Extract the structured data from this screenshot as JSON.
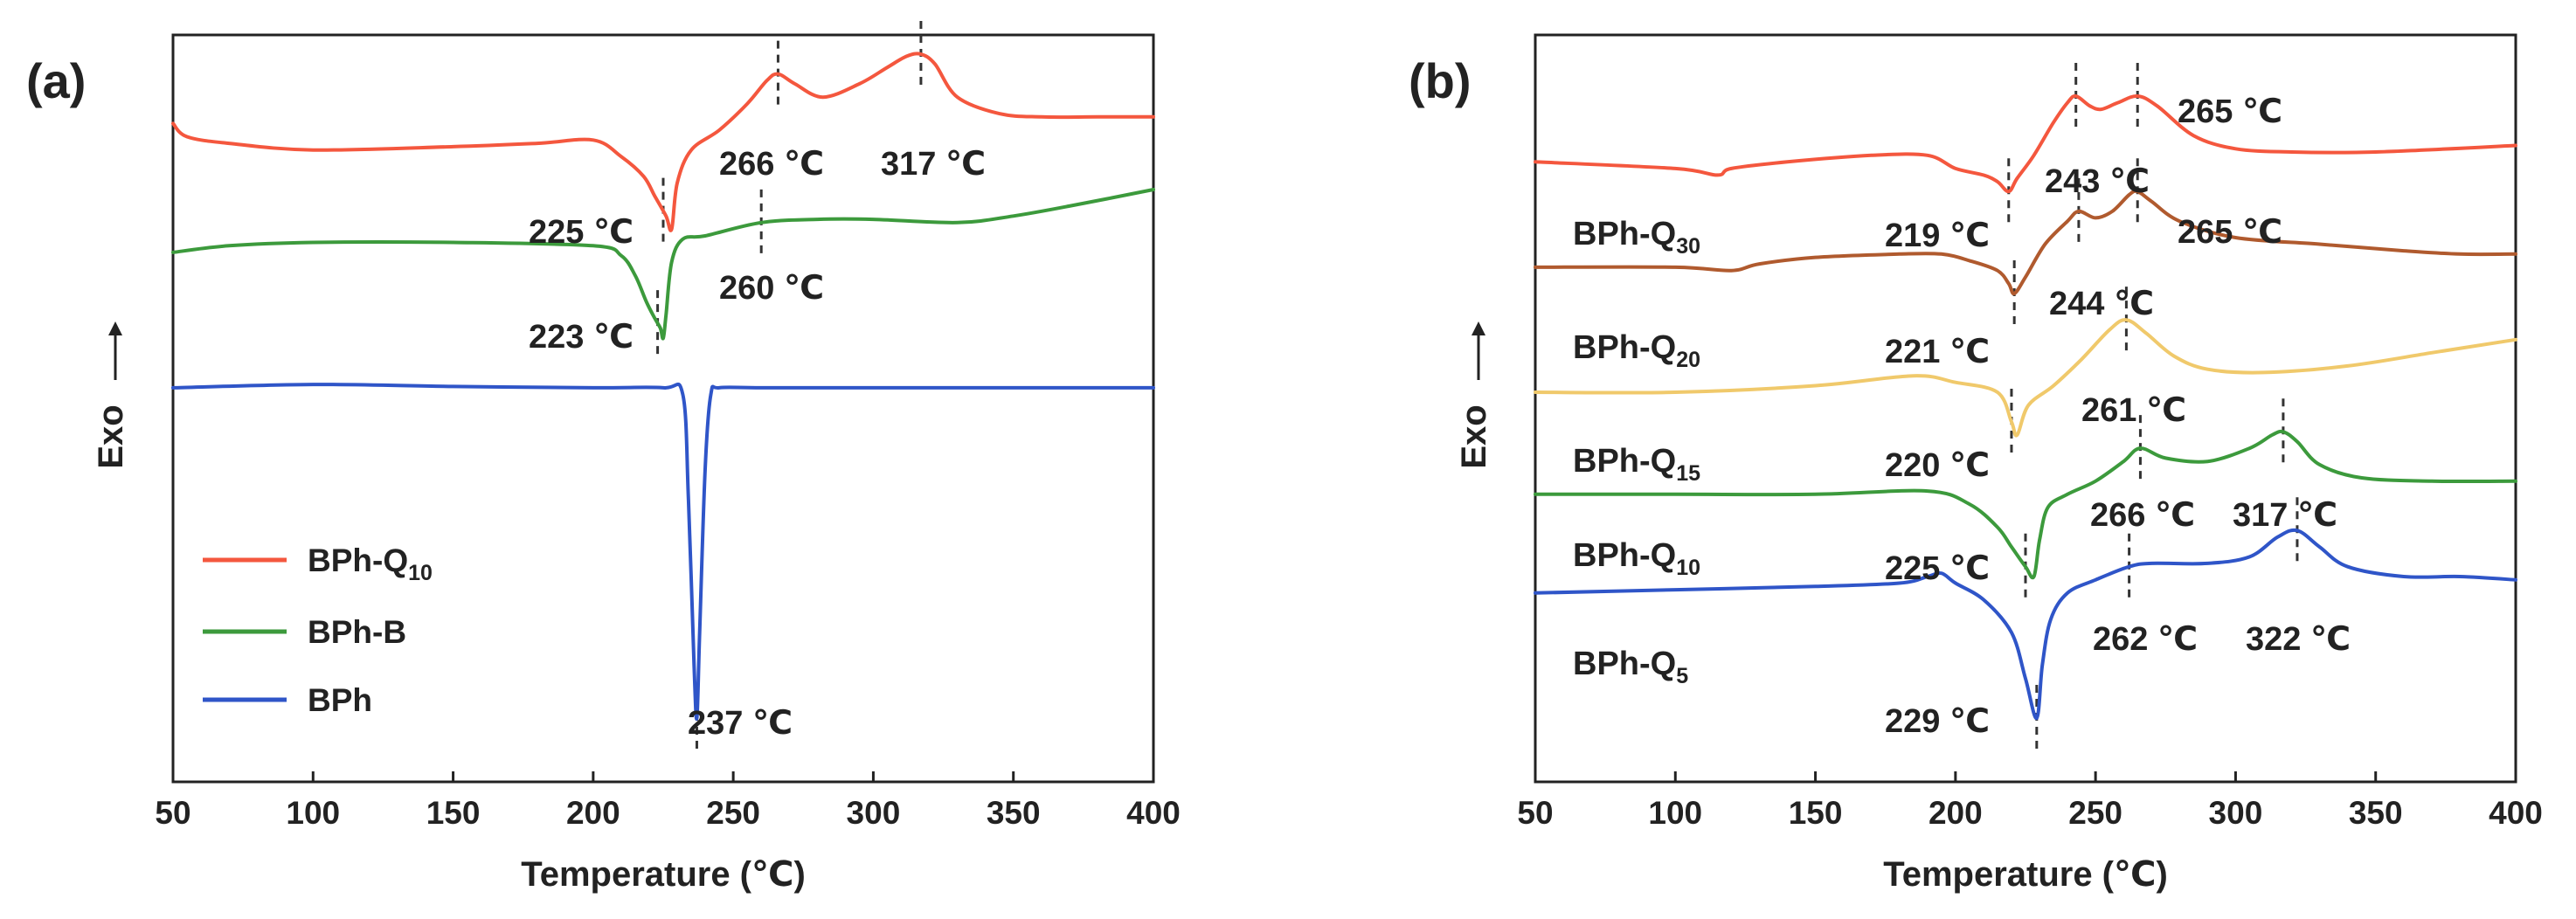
{
  "chart_data": [
    {
      "panel": "(a)",
      "type": "line",
      "xlabel": "Temperature (℃)",
      "ylabel": "Exo",
      "xlim": [
        50,
        400
      ],
      "xticks": [
        "50",
        "100",
        "150",
        "200",
        "250",
        "300",
        "350",
        "400"
      ],
      "legend": [
        "BPh-Q",
        "BPh-B",
        "BPh"
      ],
      "legend_position": "bottom-left",
      "series": [
        {
          "name": "BPh-Q10",
          "sub": "10",
          "color": "#F4573E",
          "x": [
            50,
            55,
            70,
            100,
            150,
            180,
            200,
            210,
            218,
            222,
            226,
            228,
            230,
            235,
            245,
            255,
            262,
            266,
            272,
            282,
            295,
            305,
            312,
            317,
            322,
            330,
            345,
            360,
            380,
            400
          ],
          "y": [
            0.87,
            0.85,
            0.84,
            0.83,
            0.835,
            0.84,
            0.845,
            0.82,
            0.79,
            0.76,
            0.73,
            0.71,
            0.78,
            0.83,
            0.86,
            0.9,
            0.935,
            0.945,
            0.93,
            0.91,
            0.93,
            0.955,
            0.972,
            0.975,
            0.96,
            0.91,
            0.885,
            0.88,
            0.88,
            0.88
          ],
          "annotations": [
            {
              "x": 225,
              "label": "225 ℃"
            },
            {
              "x": 266,
              "label": "266 ℃"
            },
            {
              "x": 317,
              "label": "317 ℃"
            }
          ]
        },
        {
          "name": "BPh-B",
          "sub": "",
          "color": "#3C9A3C",
          "x": [
            50,
            70,
            100,
            150,
            200,
            210,
            215,
            219,
            222,
            224,
            225,
            226,
            228,
            232,
            240,
            260,
            280,
            300,
            330,
            350,
            370,
            400
          ],
          "y": [
            0.675,
            0.685,
            0.69,
            0.69,
            0.685,
            0.67,
            0.64,
            0.6,
            0.575,
            0.56,
            0.545,
            0.58,
            0.66,
            0.695,
            0.7,
            0.72,
            0.725,
            0.725,
            0.72,
            0.73,
            0.745,
            0.77
          ],
          "annotations": [
            {
              "x": 223,
              "label": "223 ℃"
            },
            {
              "x": 260,
              "label": "260 ℃"
            }
          ]
        },
        {
          "name": "BPh",
          "sub": "",
          "color": "#2F55C8",
          "x": [
            50,
            100,
            150,
            200,
            225,
            232,
            234,
            236,
            237,
            238,
            240,
            242,
            245,
            260,
            300,
            350,
            400
          ],
          "y": [
            0.47,
            0.475,
            0.472,
            0.47,
            0.47,
            0.46,
            0.3,
            0.05,
            -0.03,
            0.1,
            0.35,
            0.46,
            0.47,
            0.47,
            0.47,
            0.47,
            0.47
          ],
          "annotations": [
            {
              "x": 237,
              "label": "237 ℃"
            }
          ]
        }
      ]
    },
    {
      "panel": "(b)",
      "type": "line",
      "xlabel": "Temperature (℃)",
      "ylabel": "Exo",
      "xlim": [
        50,
        400
      ],
      "xticks": [
        "50",
        "100",
        "150",
        "200",
        "250",
        "300",
        "350",
        "400"
      ],
      "series": [
        {
          "name": "BPh-Q30",
          "sub": "30",
          "color": "#F4573E",
          "x": [
            50,
            100,
            115,
            120,
            140,
            170,
            190,
            200,
            210,
            215,
            219,
            222,
            228,
            235,
            240,
            243,
            248,
            252,
            258,
            265,
            272,
            285,
            300,
            320,
            350,
            400
          ],
          "y": [
            0.915,
            0.905,
            0.895,
            0.905,
            0.915,
            0.925,
            0.925,
            0.905,
            0.895,
            0.885,
            0.87,
            0.89,
            0.925,
            0.975,
            1.005,
            1.015,
            1.0,
            0.995,
            1.005,
            1.015,
            1.0,
            0.955,
            0.935,
            0.93,
            0.93,
            0.94
          ],
          "annotations": [
            {
              "x": 219,
              "label": "219 ℃"
            },
            {
              "x": 243,
              "label": "243 ℃"
            },
            {
              "x": 265,
              "label": "265 ℃"
            }
          ]
        },
        {
          "name": "BPh-Q20",
          "sub": "20",
          "color": "#B05A2E",
          "x": [
            50,
            100,
            120,
            130,
            150,
            180,
            195,
            205,
            215,
            219,
            221,
            225,
            232,
            240,
            244,
            250,
            256,
            262,
            265,
            270,
            280,
            300,
            330,
            360,
            380,
            400
          ],
          "y": [
            0.755,
            0.755,
            0.75,
            0.76,
            0.77,
            0.775,
            0.775,
            0.765,
            0.75,
            0.73,
            0.715,
            0.74,
            0.79,
            0.825,
            0.84,
            0.83,
            0.84,
            0.865,
            0.87,
            0.855,
            0.825,
            0.8,
            0.79,
            0.78,
            0.775,
            0.775
          ],
          "annotations": [
            {
              "x": 221,
              "label": "221 ℃"
            },
            {
              "x": 244,
              "label": "244 ℃"
            },
            {
              "x": 265,
              "label": "265 ℃"
            }
          ]
        },
        {
          "name": "BPh-Q15",
          "sub": "15",
          "color": "#F0C96B",
          "x": [
            50,
            100,
            150,
            185,
            200,
            215,
            220,
            222,
            226,
            235,
            245,
            255,
            261,
            268,
            278,
            290,
            310,
            340,
            370,
            400
          ],
          "y": [
            0.565,
            0.565,
            0.575,
            0.59,
            0.58,
            0.565,
            0.52,
            0.5,
            0.545,
            0.575,
            0.615,
            0.66,
            0.675,
            0.655,
            0.62,
            0.6,
            0.595,
            0.605,
            0.625,
            0.645
          ],
          "annotations": [
            {
              "x": 220,
              "label": "220 ℃"
            },
            {
              "x": 261,
              "label": "261 ℃"
            }
          ]
        },
        {
          "name": "BPh-Q10",
          "sub": "10",
          "color": "#3C9A3C",
          "x": [
            50,
            100,
            150,
            190,
            205,
            215,
            220,
            225,
            228,
            230,
            233,
            240,
            250,
            260,
            266,
            275,
            290,
            305,
            313,
            317,
            322,
            330,
            345,
            370,
            400
          ],
          "y": [
            0.41,
            0.41,
            0.41,
            0.415,
            0.395,
            0.36,
            0.33,
            0.3,
            0.285,
            0.34,
            0.39,
            0.41,
            0.43,
            0.46,
            0.48,
            0.465,
            0.46,
            0.48,
            0.5,
            0.505,
            0.49,
            0.455,
            0.435,
            0.43,
            0.43
          ],
          "annotations": [
            {
              "x": 225,
              "label": "225 ℃"
            },
            {
              "x": 266,
              "label": "266 ℃"
            },
            {
              "x": 317,
              "label": "317 ℃"
            }
          ]
        },
        {
          "name": "BPh-Q5",
          "sub": "5",
          "color": "#2F55C8",
          "x": [
            50,
            100,
            150,
            180,
            190,
            195,
            200,
            210,
            220,
            225,
            229,
            231,
            234,
            240,
            250,
            262,
            270,
            290,
            305,
            315,
            322,
            330,
            340,
            360,
            380,
            400
          ],
          "y": [
            0.26,
            0.265,
            0.27,
            0.275,
            0.285,
            0.29,
            0.275,
            0.25,
            0.2,
            0.13,
            0.07,
            0.15,
            0.22,
            0.26,
            0.28,
            0.3,
            0.305,
            0.305,
            0.315,
            0.345,
            0.355,
            0.33,
            0.3,
            0.285,
            0.285,
            0.28
          ],
          "annotations": [
            {
              "x": 229,
              "label": "229 ℃"
            },
            {
              "x": 262,
              "label": "262 ℃"
            },
            {
              "x": 322,
              "label": "322 ℃"
            }
          ]
        }
      ]
    }
  ]
}
